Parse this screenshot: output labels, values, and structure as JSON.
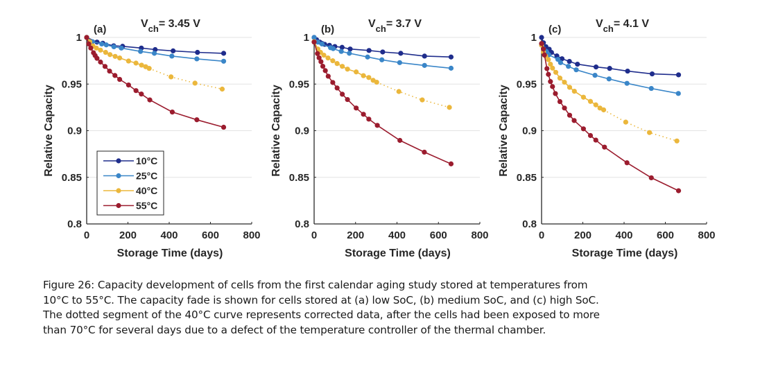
{
  "chart_data": [
    {
      "type": "line",
      "panel_label": "(a)",
      "title_main": "V",
      "title_sub": "ch",
      "title_rest": "= 3.45 V",
      "xlabel": "Storage Time (days)",
      "ylabel": "Relative Capacity",
      "xlim": [
        0,
        800
      ],
      "ylim": [
        0.8,
        1.0
      ],
      "xticks": [
        0,
        200,
        400,
        600,
        800
      ],
      "yticks": [
        0.8,
        0.85,
        0.9,
        0.95,
        1
      ],
      "ytick_labels": [
        "0.8",
        "0.85",
        "0.9",
        "0.95",
        "1"
      ],
      "grid": "horizontal",
      "legend": "lower-left",
      "series": [
        {
          "name": "10°C",
          "color": "#1f2d8c",
          "x": [
            0,
            50,
            78,
            131,
            174,
            265,
            332,
            419,
            537,
            664
          ],
          "y": [
            1.0,
            0.995,
            0.9938,
            0.991,
            0.9905,
            0.9886,
            0.987,
            0.9856,
            0.984,
            0.983
          ]
        },
        {
          "name": "25°C",
          "color": "#3a86c8",
          "x": [
            0,
            28,
            73,
            95,
            132,
            168,
            261,
            328,
            413,
            534,
            664
          ],
          "y": [
            1.0,
            0.9955,
            0.993,
            0.992,
            0.99,
            0.9886,
            0.985,
            0.983,
            0.98,
            0.977,
            0.9745
          ]
        },
        {
          "name": "40°C",
          "color": "#ebb73c",
          "x": [
            0,
            15,
            30,
            47,
            67,
            92,
            113,
            138,
            160,
            203,
            239,
            266,
            286,
            303
          ],
          "y": [
            1.0,
            0.9955,
            0.991,
            0.9886,
            0.9864,
            0.984,
            0.9816,
            0.9797,
            0.978,
            0.9747,
            0.9725,
            0.9703,
            0.9686,
            0.9668
          ],
          "dotted_x": [
            303,
            409,
            525,
            657
          ],
          "dotted_y": [
            0.9668,
            0.9577,
            0.951,
            0.9446
          ]
        },
        {
          "name": "55°C",
          "color": "#9b1c2e",
          "x": [
            0,
            10,
            20,
            33,
            41,
            50,
            67,
            89,
            111,
            137,
            160,
            203,
            239,
            265,
            306,
            415,
            534,
            664
          ],
          "y": [
            1.0,
            0.993,
            0.9886,
            0.9836,
            0.9806,
            0.9776,
            0.9736,
            0.9689,
            0.9639,
            0.9592,
            0.955,
            0.949,
            0.943,
            0.9393,
            0.933,
            0.92,
            0.9117,
            0.9037
          ]
        }
      ]
    },
    {
      "type": "line",
      "panel_label": "(b)",
      "title_main": "V",
      "title_sub": "ch",
      "title_rest": "= 3.7 V",
      "xlabel": "Storage Time (days)",
      "ylabel": "Relative Capacity",
      "xlim": [
        0,
        800
      ],
      "ylim": [
        0.8,
        1.0
      ],
      "xticks": [
        0,
        200,
        400,
        600,
        800
      ],
      "yticks": [
        0.8,
        0.85,
        0.9,
        0.95,
        1
      ],
      "ytick_labels": [
        "0.8",
        "0.85",
        "0.9",
        "0.95",
        "1"
      ],
      "grid": "horizontal",
      "series": [
        {
          "name": "10°C",
          "color": "#1f2d8c",
          "x": [
            0,
            12,
            27,
            38,
            51,
            74,
            100,
            135,
            174,
            265,
            331,
            418,
            533,
            661
          ],
          "y": [
            1.0,
            0.9975,
            0.995,
            0.9936,
            0.9926,
            0.9916,
            0.9903,
            0.9894,
            0.9876,
            0.986,
            0.9844,
            0.983,
            0.98,
            0.979
          ]
        },
        {
          "name": "25°C",
          "color": "#3a86c8",
          "x": [
            0,
            18,
            38,
            79,
            92,
            131,
            170,
            258,
            327,
            413,
            533,
            661
          ],
          "y": [
            1.0,
            0.995,
            0.993,
            0.989,
            0.988,
            0.985,
            0.983,
            0.979,
            0.976,
            0.973,
            0.97,
            0.967
          ]
        },
        {
          "name": "40°C",
          "color": "#ebb73c",
          "x": [
            0,
            18,
            31,
            47,
            67,
            90,
            111,
            136,
            161,
            203,
            238,
            264,
            285,
            302
          ],
          "y": [
            0.9955,
            0.9876,
            0.984,
            0.981,
            0.978,
            0.975,
            0.972,
            0.969,
            0.966,
            0.963,
            0.959,
            0.957,
            0.954,
            0.952
          ],
          "dotted_x": [
            302,
            409,
            522,
            653
          ],
          "dotted_y": [
            0.952,
            0.942,
            0.933,
            0.925
          ]
        },
        {
          "name": "55°C",
          "color": "#9b1c2e",
          "x": [
            0,
            16,
            24,
            33,
            42,
            54,
            68,
            90,
            111,
            136,
            161,
            203,
            238,
            264,
            305,
            414,
            532,
            661
          ],
          "y": [
            0.995,
            0.9827,
            0.9782,
            0.974,
            0.9691,
            0.9644,
            0.9584,
            0.9517,
            0.9458,
            0.9391,
            0.9334,
            0.9243,
            0.9176,
            0.9124,
            0.9057,
            0.8896,
            0.877,
            0.8644
          ]
        }
      ]
    },
    {
      "type": "line",
      "panel_label": "(c)",
      "title_main": "V",
      "title_sub": "ch",
      "title_rest": "= 4.1 V",
      "xlabel": "Storage Time (days)",
      "ylabel": "Relative Capacity",
      "xlim": [
        0,
        800
      ],
      "ylim": [
        0.8,
        1.0
      ],
      "xticks": [
        0,
        200,
        400,
        600,
        800
      ],
      "yticks": [
        0.8,
        0.85,
        0.9,
        0.95,
        1
      ],
      "ytick_labels": [
        "0.8",
        "0.85",
        "0.9",
        "0.95",
        "1"
      ],
      "grid": "horizontal",
      "series": [
        {
          "name": "10°C",
          "color": "#1f2d8c",
          "x": [
            0,
            9,
            21,
            37,
            48,
            74,
            99,
            135,
            174,
            264,
            330,
            417,
            536,
            664
          ],
          "y": [
            1.0,
            0.9943,
            0.9901,
            0.9874,
            0.9839,
            0.9802,
            0.9772,
            0.9743,
            0.9713,
            0.9683,
            0.9668,
            0.9639,
            0.9609,
            0.9599
          ]
        },
        {
          "name": "25°C",
          "color": "#3a86c8",
          "x": [
            0,
            9,
            23,
            35,
            79,
            92,
            130,
            168,
            259,
            327,
            414,
            532,
            663
          ],
          "y": [
            0.9918,
            0.988,
            0.985,
            0.9814,
            0.9765,
            0.973,
            0.969,
            0.9653,
            0.9594,
            0.9555,
            0.9508,
            0.9453,
            0.9399
          ]
        },
        {
          "name": "40°C",
          "color": "#ebb73c",
          "x": [
            0,
            9,
            20,
            33,
            43,
            53,
            69,
            89,
            111,
            136,
            159,
            203,
            237,
            263,
            283,
            301
          ],
          "y": [
            0.9918,
            0.9844,
            0.98,
            0.9762,
            0.9713,
            0.9671,
            0.9626,
            0.9564,
            0.952,
            0.9465,
            0.9423,
            0.9359,
            0.9314,
            0.9277,
            0.9243,
            0.9223
          ],
          "dotted_x": [
            301,
            408,
            523,
            656
          ],
          "dotted_y": [
            0.9223,
            0.9092,
            0.898,
            0.889
          ]
        },
        {
          "name": "55°C",
          "color": "#9b1c2e",
          "x": [
            0,
            9,
            14,
            26,
            33,
            43,
            53,
            67,
            89,
            111,
            136,
            158,
            203,
            237,
            263,
            305,
            414,
            532,
            664
          ],
          "y": [
            0.9935,
            0.9876,
            0.9812,
            0.9666,
            0.9604,
            0.9527,
            0.9473,
            0.9398,
            0.9312,
            0.9243,
            0.9166,
            0.9109,
            0.902,
            0.8948,
            0.8899,
            0.8824,
            0.8656,
            0.8495,
            0.8356
          ]
        }
      ]
    }
  ],
  "caption": {
    "lines": [
      "Figure 26: Capacity development of cells from the first calendar aging study stored at temperatures from",
      "10°C to 55°C. The capacity fade is shown for cells stored at (a) low SoC, (b) medium SoC, and (c) high SoC.",
      "The dotted segment of the 40°C curve represents corrected data, after the cells had been exposed to more",
      "than 70°C for several days due to a defect of the temperature controller of the thermal chamber."
    ]
  }
}
